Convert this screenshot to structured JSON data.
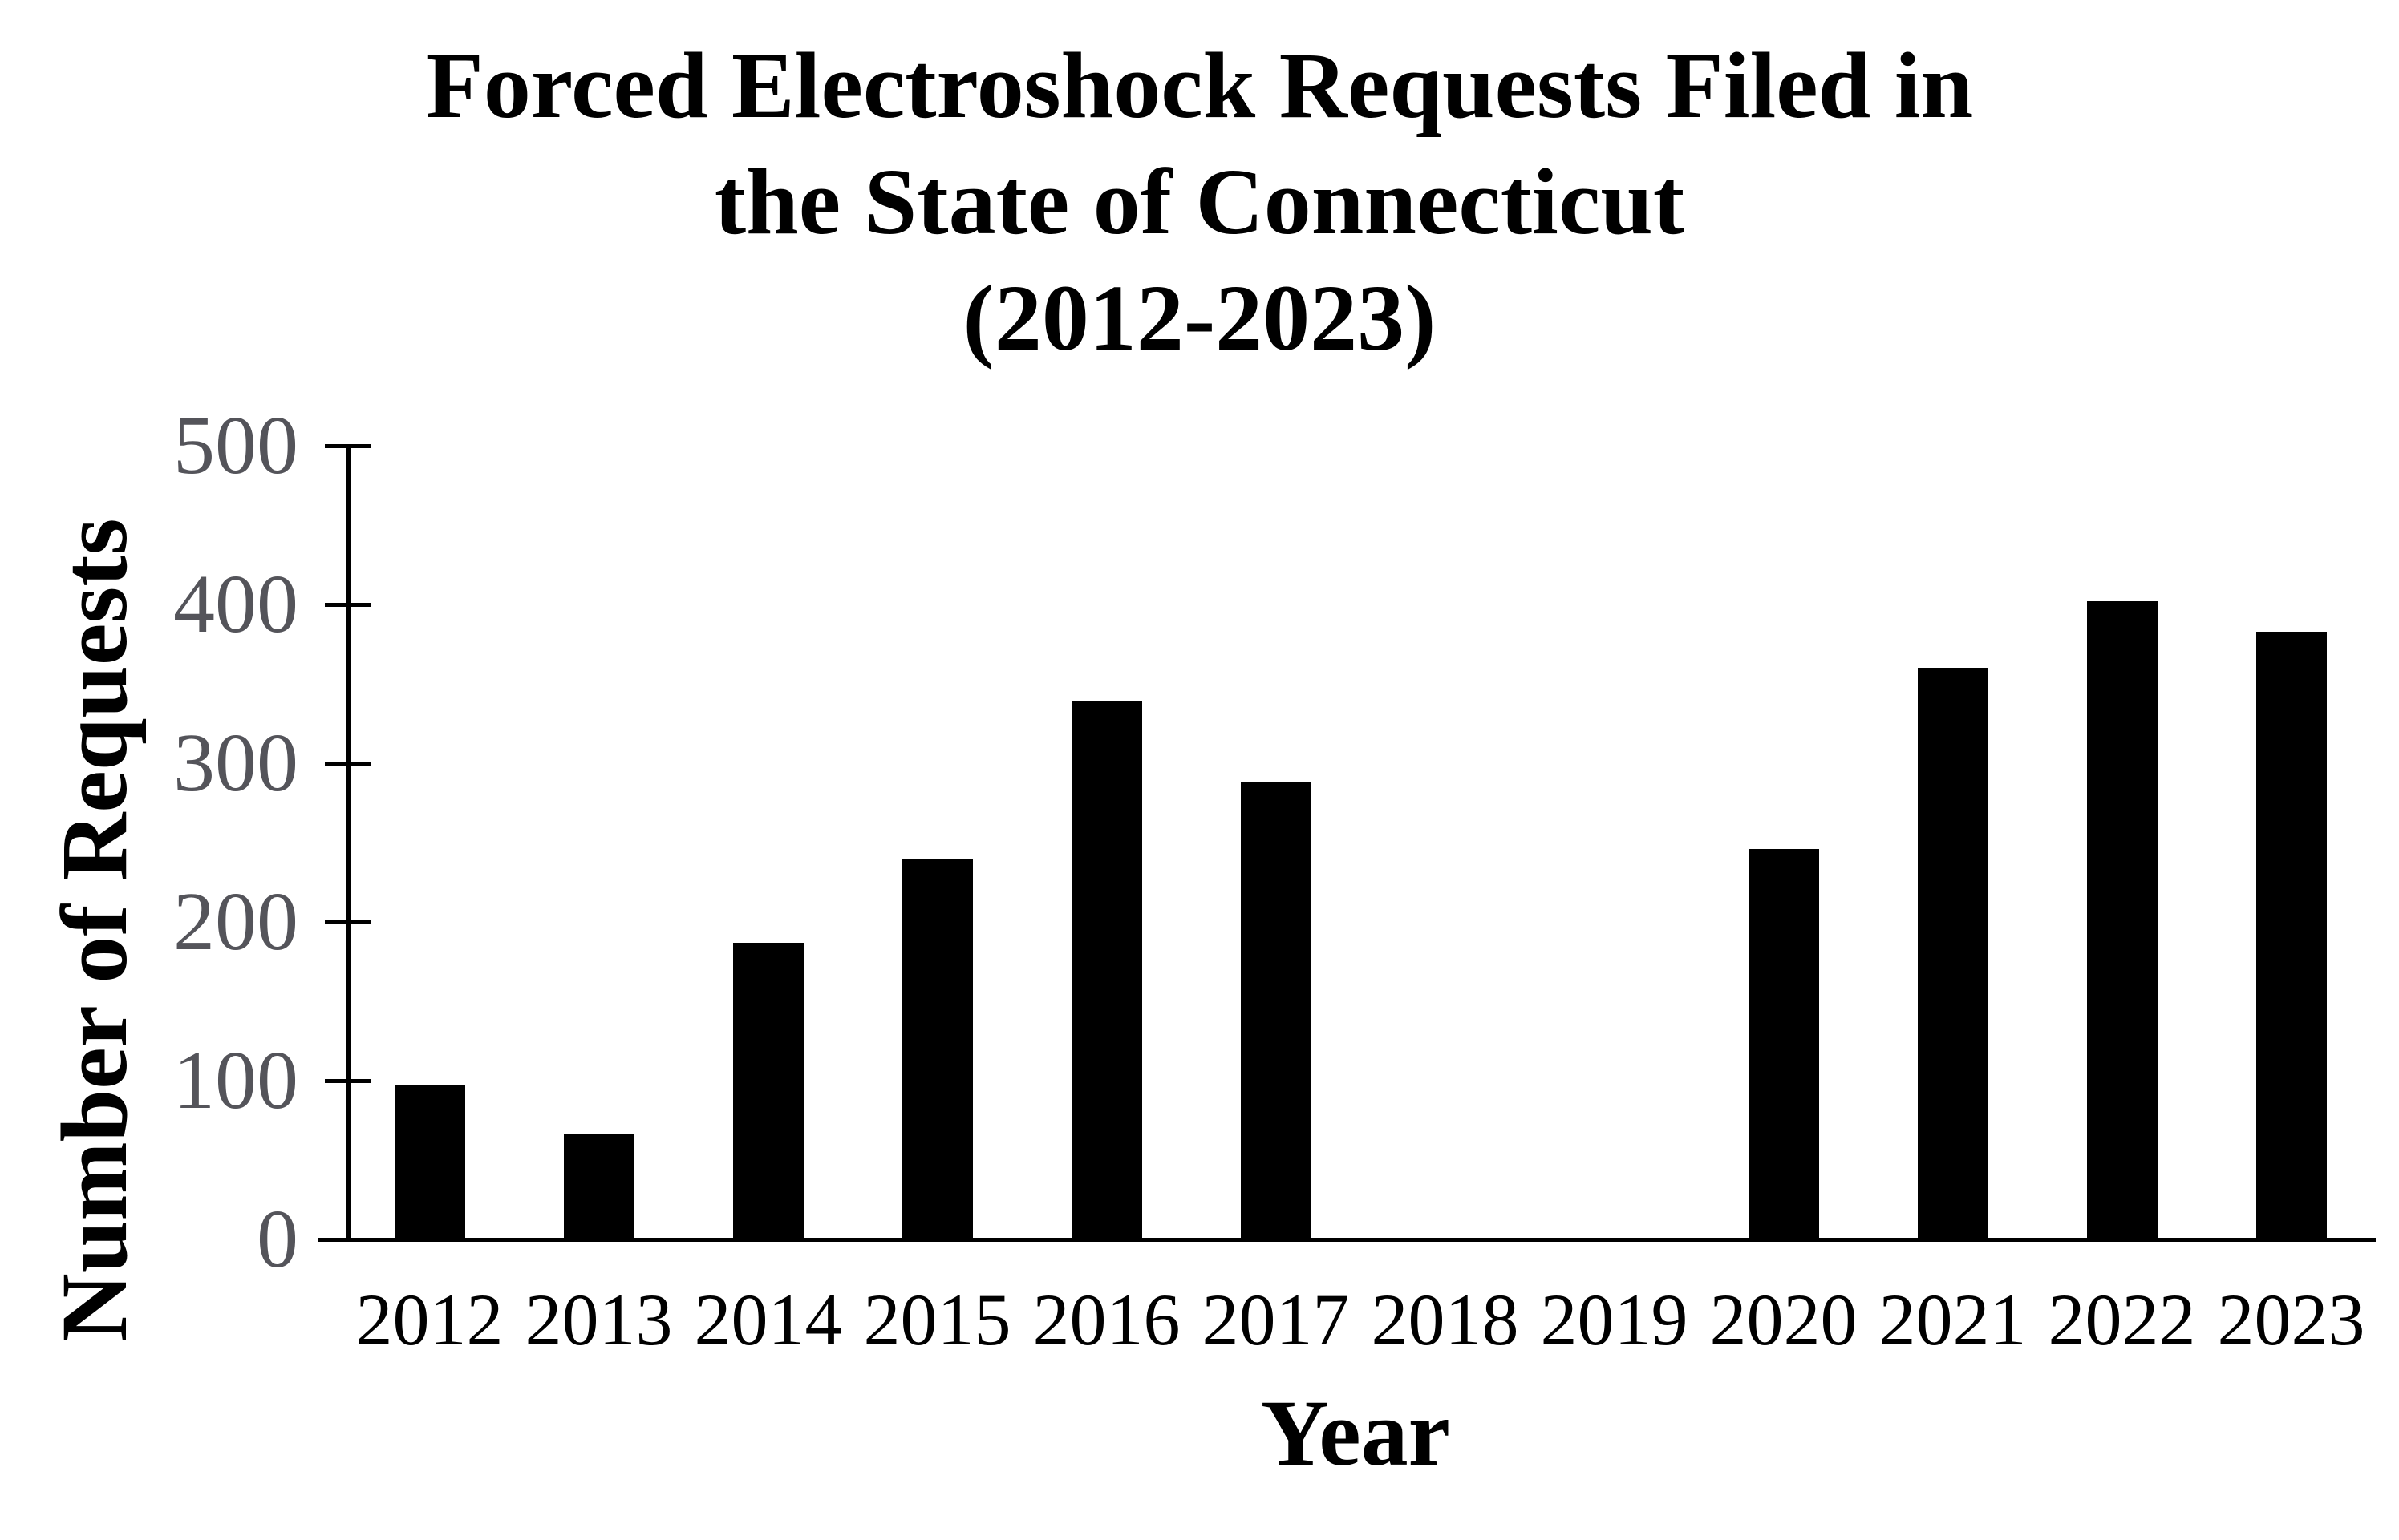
{
  "chart_data": {
    "type": "bar",
    "title": "Forced Electroshock Requests Filed in\nthe State of Connecticut\n(2012-2023)",
    "xlabel": "Year",
    "ylabel": "Number of Requests",
    "categories": [
      "2012",
      "2013",
      "2014",
      "2015",
      "2016",
      "2017",
      "2018",
      "2019",
      "2020",
      "2021",
      "2022",
      "2023"
    ],
    "values": [
      97,
      66,
      187,
      240,
      339,
      288,
      0,
      0,
      246,
      360,
      402,
      383
    ],
    "series": [
      {
        "name": "Number of Requests",
        "values": [
          97,
          66,
          187,
          240,
          339,
          288,
          0,
          0,
          246,
          360,
          402,
          383
        ]
      }
    ],
    "ylim": [
      0,
      500
    ],
    "yticks": [
      500,
      400,
      300,
      200,
      100,
      0
    ],
    "grid": false,
    "legend_position": "none",
    "bar_color": "#000000",
    "axis_color": "#000000",
    "ytick_label_color": "#54545A",
    "xtick_label_color": "#000000",
    "title_color": "#000000",
    "background_color": "#ffffff"
  }
}
